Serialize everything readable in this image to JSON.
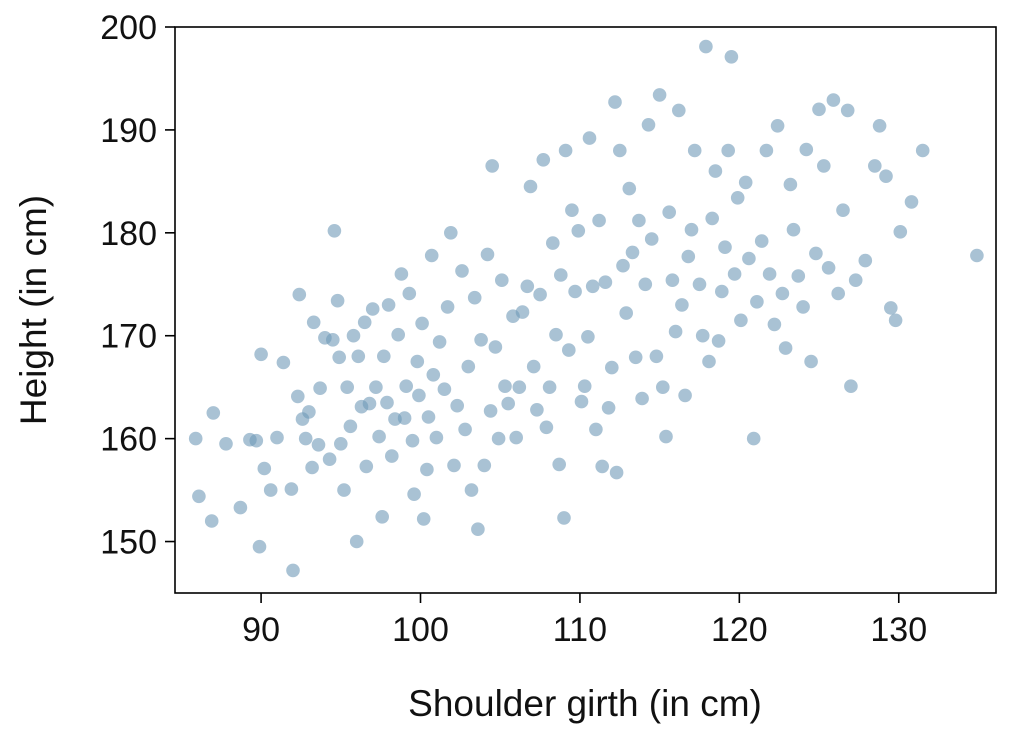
{
  "chart_data": {
    "type": "scatter",
    "title": "",
    "xlabel": "Shoulder girth (in cm)",
    "ylabel": "Height (in cm)",
    "xlim": [
      84.6,
      136.1
    ],
    "ylim": [
      145,
      200
    ],
    "xticks": [
      90,
      100,
      110,
      120,
      130
    ],
    "yticks": [
      150,
      160,
      170,
      180,
      190,
      200
    ],
    "grid": false,
    "legend": "none",
    "point_color": "#6f9ab7",
    "point_opacity": 0.6,
    "points": [
      [
        85.9,
        160.0
      ],
      [
        86.1,
        154.4
      ],
      [
        86.9,
        152.0
      ],
      [
        87.0,
        162.5
      ],
      [
        87.8,
        159.5
      ],
      [
        88.7,
        153.3
      ],
      [
        89.3,
        159.9
      ],
      [
        89.7,
        159.8
      ],
      [
        89.9,
        149.5
      ],
      [
        90.0,
        168.2
      ],
      [
        90.2,
        157.1
      ],
      [
        90.6,
        155.0
      ],
      [
        91.0,
        160.1
      ],
      [
        91.4,
        167.4
      ],
      [
        91.9,
        155.1
      ],
      [
        92.0,
        147.2
      ],
      [
        92.3,
        164.1
      ],
      [
        92.4,
        174.0
      ],
      [
        92.6,
        161.9
      ],
      [
        92.8,
        160.0
      ],
      [
        93.0,
        162.6
      ],
      [
        93.2,
        157.2
      ],
      [
        93.3,
        171.3
      ],
      [
        93.6,
        159.4
      ],
      [
        93.7,
        164.9
      ],
      [
        94.0,
        169.8
      ],
      [
        94.3,
        158.0
      ],
      [
        94.5,
        169.6
      ],
      [
        94.6,
        180.2
      ],
      [
        94.8,
        173.4
      ],
      [
        94.9,
        167.9
      ],
      [
        95.0,
        159.5
      ],
      [
        95.2,
        155.0
      ],
      [
        95.4,
        165.0
      ],
      [
        95.6,
        161.2
      ],
      [
        95.8,
        170.0
      ],
      [
        96.0,
        150.0
      ],
      [
        96.1,
        168.0
      ],
      [
        96.3,
        163.1
      ],
      [
        96.5,
        171.3
      ],
      [
        96.6,
        157.3
      ],
      [
        96.8,
        163.4
      ],
      [
        97.0,
        172.6
      ],
      [
        97.2,
        165.0
      ],
      [
        97.4,
        160.2
      ],
      [
        97.6,
        152.4
      ],
      [
        97.7,
        168.0
      ],
      [
        97.9,
        163.5
      ],
      [
        98.0,
        173.0
      ],
      [
        98.2,
        158.3
      ],
      [
        98.4,
        161.9
      ],
      [
        98.6,
        170.1
      ],
      [
        98.8,
        176.0
      ],
      [
        99.0,
        162.0
      ],
      [
        99.1,
        165.1
      ],
      [
        99.3,
        174.1
      ],
      [
        99.5,
        159.8
      ],
      [
        99.6,
        154.6
      ],
      [
        99.8,
        167.5
      ],
      [
        99.9,
        164.2
      ],
      [
        100.1,
        171.2
      ],
      [
        100.2,
        152.2
      ],
      [
        100.4,
        157.0
      ],
      [
        100.5,
        162.1
      ],
      [
        100.7,
        177.8
      ],
      [
        100.8,
        166.2
      ],
      [
        101.0,
        160.1
      ],
      [
        101.2,
        169.4
      ],
      [
        101.5,
        164.8
      ],
      [
        101.7,
        172.8
      ],
      [
        101.9,
        180.0
      ],
      [
        102.1,
        157.4
      ],
      [
        102.3,
        163.2
      ],
      [
        102.6,
        176.3
      ],
      [
        102.8,
        160.9
      ],
      [
        103.0,
        167.0
      ],
      [
        103.2,
        155.0
      ],
      [
        103.4,
        173.7
      ],
      [
        103.6,
        151.2
      ],
      [
        103.8,
        169.6
      ],
      [
        104.0,
        157.4
      ],
      [
        104.2,
        177.9
      ],
      [
        104.4,
        162.7
      ],
      [
        104.5,
        186.5
      ],
      [
        104.7,
        168.9
      ],
      [
        104.9,
        160.0
      ],
      [
        105.1,
        175.4
      ],
      [
        105.3,
        165.1
      ],
      [
        105.5,
        163.4
      ],
      [
        105.8,
        171.9
      ],
      [
        106.0,
        160.1
      ],
      [
        106.2,
        165.0
      ],
      [
        106.4,
        172.3
      ],
      [
        106.7,
        174.8
      ],
      [
        106.9,
        184.5
      ],
      [
        107.1,
        167.0
      ],
      [
        107.3,
        162.8
      ],
      [
        107.5,
        174.0
      ],
      [
        107.7,
        187.1
      ],
      [
        107.9,
        161.1
      ],
      [
        108.1,
        165.0
      ],
      [
        108.3,
        179.0
      ],
      [
        108.5,
        170.1
      ],
      [
        108.7,
        157.5
      ],
      [
        108.8,
        175.9
      ],
      [
        109.0,
        152.3
      ],
      [
        109.1,
        188.0
      ],
      [
        109.3,
        168.6
      ],
      [
        109.5,
        182.2
      ],
      [
        109.7,
        174.3
      ],
      [
        109.9,
        180.2
      ],
      [
        110.1,
        163.6
      ],
      [
        110.3,
        165.1
      ],
      [
        110.5,
        169.9
      ],
      [
        110.6,
        189.2
      ],
      [
        110.8,
        174.8
      ],
      [
        111.0,
        160.9
      ],
      [
        111.2,
        181.2
      ],
      [
        111.4,
        157.3
      ],
      [
        111.6,
        175.2
      ],
      [
        111.8,
        163.0
      ],
      [
        112.0,
        166.9
      ],
      [
        112.2,
        192.7
      ],
      [
        112.3,
        156.7
      ],
      [
        112.5,
        188.0
      ],
      [
        112.7,
        176.8
      ],
      [
        112.9,
        172.2
      ],
      [
        113.1,
        184.3
      ],
      [
        113.3,
        178.1
      ],
      [
        113.5,
        167.9
      ],
      [
        113.7,
        181.2
      ],
      [
        113.9,
        163.9
      ],
      [
        114.1,
        175.0
      ],
      [
        114.3,
        190.5
      ],
      [
        114.5,
        179.4
      ],
      [
        114.8,
        168.0
      ],
      [
        115.0,
        193.4
      ],
      [
        115.2,
        165.0
      ],
      [
        115.4,
        160.2
      ],
      [
        115.6,
        182.0
      ],
      [
        115.8,
        175.4
      ],
      [
        116.0,
        170.4
      ],
      [
        116.2,
        191.9
      ],
      [
        116.4,
        173.0
      ],
      [
        116.6,
        164.2
      ],
      [
        116.8,
        177.7
      ],
      [
        117.0,
        180.3
      ],
      [
        117.2,
        188.0
      ],
      [
        117.5,
        175.0
      ],
      [
        117.7,
        170.0
      ],
      [
        117.9,
        198.1
      ],
      [
        118.1,
        167.5
      ],
      [
        118.3,
        181.4
      ],
      [
        118.5,
        186.0
      ],
      [
        118.7,
        169.5
      ],
      [
        118.9,
        174.3
      ],
      [
        119.1,
        178.6
      ],
      [
        119.3,
        188.0
      ],
      [
        119.5,
        197.1
      ],
      [
        119.7,
        176.0
      ],
      [
        119.9,
        183.4
      ],
      [
        120.1,
        171.5
      ],
      [
        120.4,
        184.9
      ],
      [
        120.6,
        177.5
      ],
      [
        120.9,
        160.0
      ],
      [
        121.1,
        173.3
      ],
      [
        121.4,
        179.2
      ],
      [
        121.7,
        188.0
      ],
      [
        121.9,
        176.0
      ],
      [
        122.2,
        171.1
      ],
      [
        122.4,
        190.4
      ],
      [
        122.7,
        174.1
      ],
      [
        122.9,
        168.8
      ],
      [
        123.2,
        184.7
      ],
      [
        123.4,
        180.3
      ],
      [
        123.7,
        175.8
      ],
      [
        124.0,
        172.8
      ],
      [
        124.2,
        188.1
      ],
      [
        124.5,
        167.5
      ],
      [
        124.8,
        178.0
      ],
      [
        125.0,
        192.0
      ],
      [
        125.3,
        186.5
      ],
      [
        125.6,
        176.6
      ],
      [
        125.9,
        192.9
      ],
      [
        126.2,
        174.1
      ],
      [
        126.5,
        182.2
      ],
      [
        126.8,
        191.9
      ],
      [
        127.0,
        165.1
      ],
      [
        127.3,
        175.4
      ],
      [
        127.9,
        177.3
      ],
      [
        128.5,
        186.5
      ],
      [
        128.8,
        190.4
      ],
      [
        129.2,
        185.5
      ],
      [
        129.5,
        172.7
      ],
      [
        129.8,
        171.5
      ],
      [
        130.1,
        180.1
      ],
      [
        130.8,
        183.0
      ],
      [
        131.5,
        188.0
      ],
      [
        134.9,
        177.8
      ]
    ]
  }
}
